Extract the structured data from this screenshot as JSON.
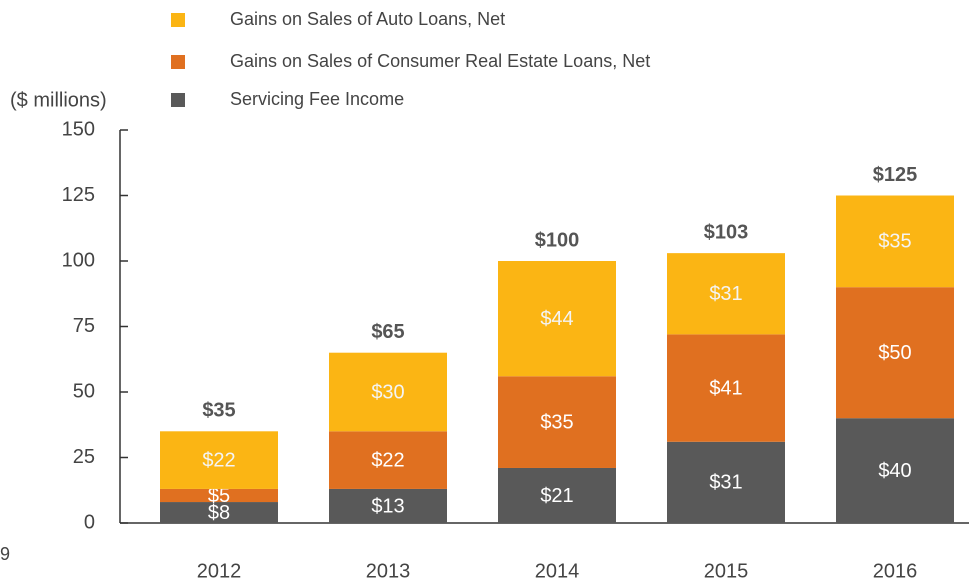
{
  "chart_data": {
    "type": "stacked_bar",
    "y_axis_label": "($ millions)",
    "page_number": "9",
    "categories": [
      "2012",
      "2013",
      "2014",
      "2015",
      "2016"
    ],
    "series": [
      {
        "name": "Servicing Fee Income",
        "color": "#595959",
        "values": [
          8,
          13,
          21,
          31,
          40
        ],
        "value_labels": [
          "$8",
          "$13",
          "$21",
          "$31",
          "$40"
        ]
      },
      {
        "name": "Gains on Sales of Consumer Real Estate Loans, Net",
        "color": "#e07020",
        "values": [
          5,
          22,
          35,
          41,
          50
        ],
        "value_labels": [
          "$5",
          "$22",
          "$35",
          "$41",
          "$50"
        ]
      },
      {
        "name": "Gains on Sales of Auto Loans, Net",
        "color": "#fbb514",
        "values": [
          22,
          30,
          44,
          31,
          35
        ],
        "value_labels": [
          "$22",
          "$30",
          "$44",
          "$31",
          "$35"
        ]
      }
    ],
    "totals": [
      35,
      65,
      100,
      103,
      125
    ],
    "total_labels": [
      "$35",
      "$65",
      "$100",
      "$103",
      "$125"
    ],
    "ylim": [
      0,
      150
    ],
    "yticks": [
      0,
      25,
      50,
      75,
      100,
      125,
      150
    ],
    "grid": false
  }
}
